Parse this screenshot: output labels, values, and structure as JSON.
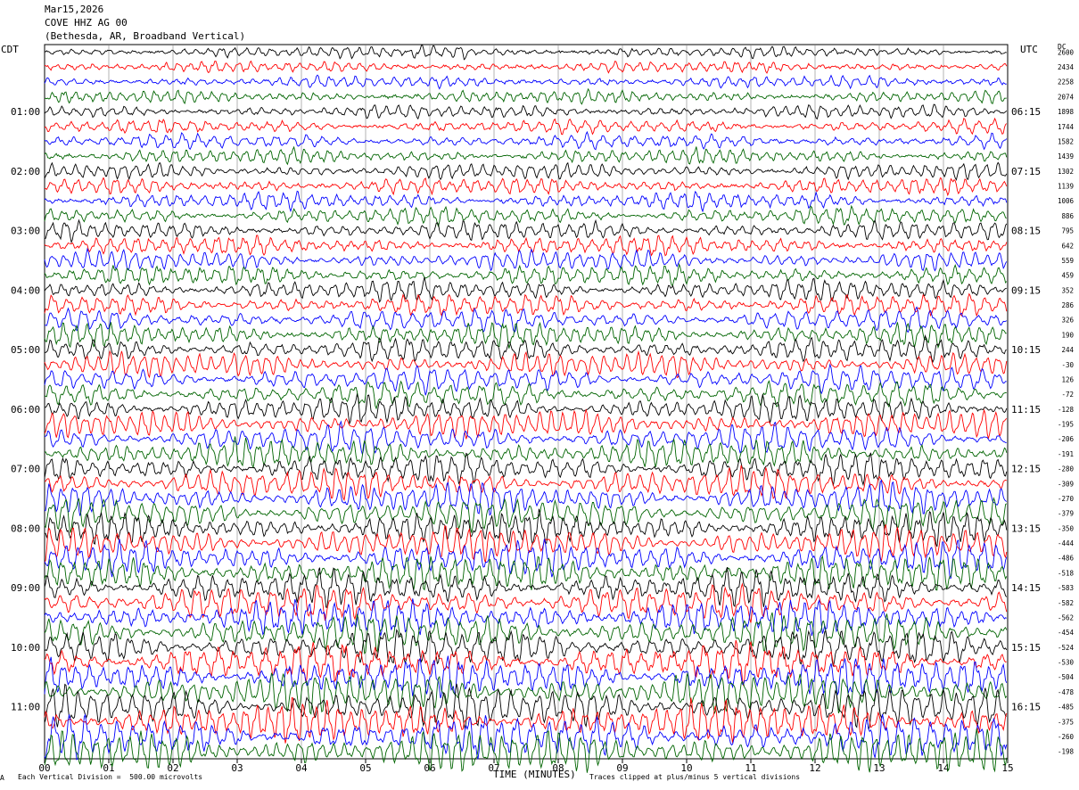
{
  "header": {
    "date": "Mar15,2026",
    "station": "COVE HHZ AG 00",
    "location": "(Bethesda, AR, Broadband Vertical)"
  },
  "left_tz": "CDT",
  "right_tz": "UTC",
  "dc_label": "DC",
  "footer": {
    "scale_note": "Each Vertical Division =  500.00 microvolts",
    "xlabel": "TIME (MINUTES)",
    "clip_note": "Traces clipped at plus/minus 5 vertical divisions",
    "corner_mark": "A"
  },
  "colors": {
    "trace_cycle": [
      "#000000",
      "#ff0000",
      "#0000ff",
      "#006400"
    ],
    "grid": "#808080"
  },
  "chart_data": {
    "type": "line",
    "title": "COVE HHZ AG 00",
    "xlabel": "TIME (MINUTES)",
    "x_ticks": [
      "00",
      "01",
      "02",
      "03",
      "04",
      "05",
      "06",
      "07",
      "08",
      "09",
      "10",
      "11",
      "12",
      "13",
      "14",
      "15"
    ],
    "xlim": [
      0,
      15
    ],
    "trace_count": 48,
    "minutes_per_trace": 15,
    "left_hour_labels": [
      "01:00",
      "02:00",
      "03:00",
      "04:00",
      "05:00",
      "06:00",
      "07:00",
      "08:00",
      "09:00",
      "10:00",
      "11:00"
    ],
    "right_hour_labels": [
      "06:15",
      "07:15",
      "08:15",
      "09:15",
      "10:15",
      "11:15",
      "12:15",
      "13:15",
      "14:15",
      "15:15",
      "16:15"
    ],
    "dc_offsets": [
      "2600",
      "2434",
      "2258",
      "2074",
      "1898",
      "1744",
      "1582",
      "1439",
      "1302",
      "1139",
      "1006",
      "886",
      "795",
      "642",
      "559",
      "459",
      "352",
      "286",
      "326",
      "190",
      "244",
      "-30",
      "126",
      "-72",
      "-128",
      "-195",
      "-206",
      "-191",
      "-280",
      "-309",
      "-270",
      "-379",
      "-350",
      "-444",
      "-486",
      "-518",
      "-583",
      "-582",
      "-562",
      "-454",
      "-524",
      "-530",
      "-504",
      "-478",
      "-485",
      "-375",
      "-260",
      "-198"
    ]
  }
}
